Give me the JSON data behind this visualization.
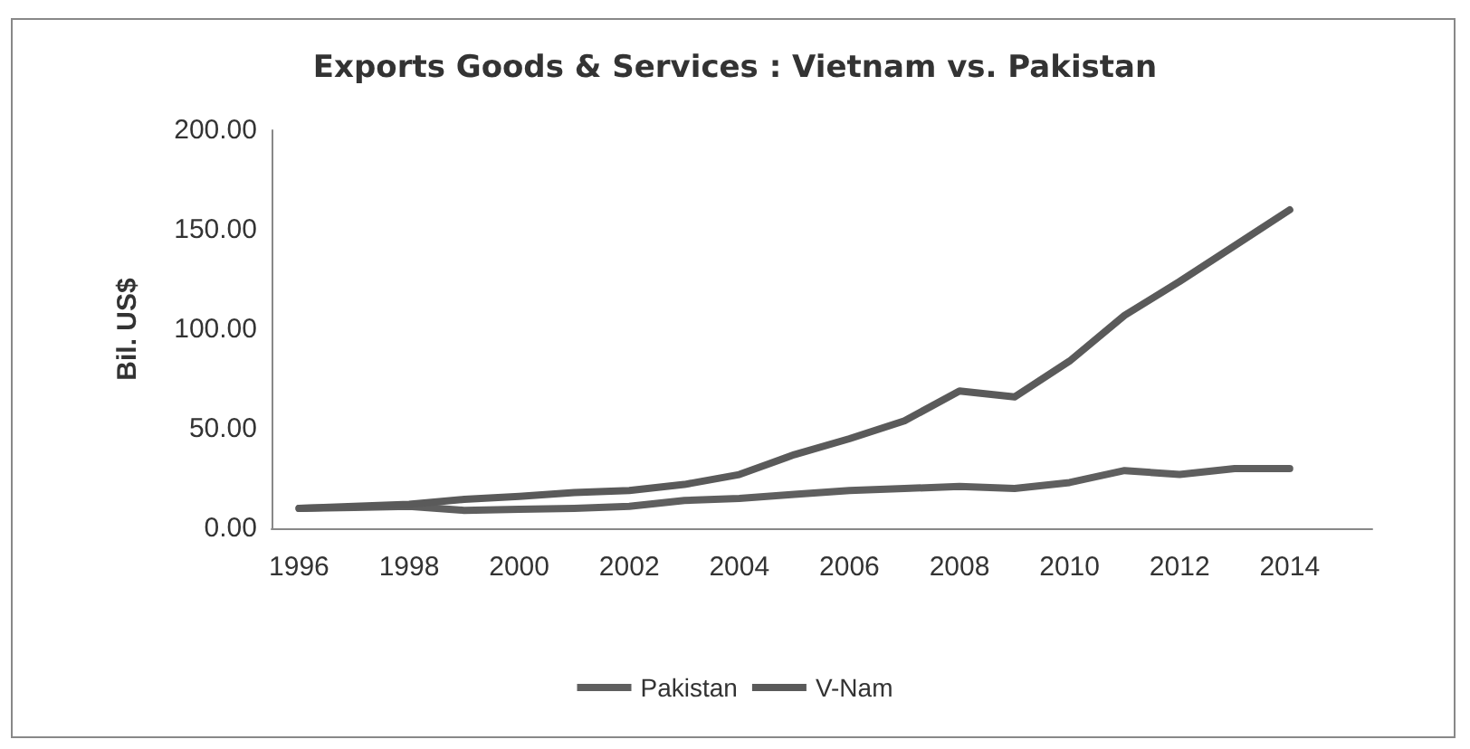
{
  "chart_data": {
    "type": "line",
    "title": "Exports Goods & Services : Vietnam vs. Pakistan",
    "ylabel": "Bil. US$",
    "x": [
      1996,
      1997,
      1998,
      1999,
      2000,
      2001,
      2002,
      2003,
      2004,
      2005,
      2006,
      2007,
      2008,
      2009,
      2010,
      2011,
      2012,
      2013,
      2014
    ],
    "series": [
      {
        "name": "Pakistan",
        "color": "#5f5f5f",
        "values": [
          10,
          10.5,
          11,
          9,
          9.5,
          10,
          11,
          14,
          15,
          17,
          19,
          20,
          21,
          20,
          23,
          29,
          27,
          30,
          30
        ]
      },
      {
        "name": "V-Nam",
        "color": "#5a5a5a",
        "values": [
          10,
          11,
          12,
          14.5,
          16,
          18,
          19,
          22,
          27,
          37,
          45,
          54,
          69,
          66,
          84,
          107,
          124,
          142,
          160
        ]
      }
    ],
    "xlim": [
      1995.5,
      2015.5
    ],
    "xticks": [
      1996,
      1998,
      2000,
      2002,
      2004,
      2006,
      2008,
      2010,
      2012,
      2014
    ],
    "ylim": [
      0,
      200
    ],
    "yticks": [
      {
        "value": 0,
        "label": "0.00"
      },
      {
        "value": 50,
        "label": "50.00"
      },
      {
        "value": 100,
        "label": "100.00"
      },
      {
        "value": 150,
        "label": "150.00"
      },
      {
        "value": 200,
        "label": "200.00"
      }
    ],
    "grid": false,
    "legend": "bottom",
    "marker": "none",
    "line_style": "solid"
  }
}
